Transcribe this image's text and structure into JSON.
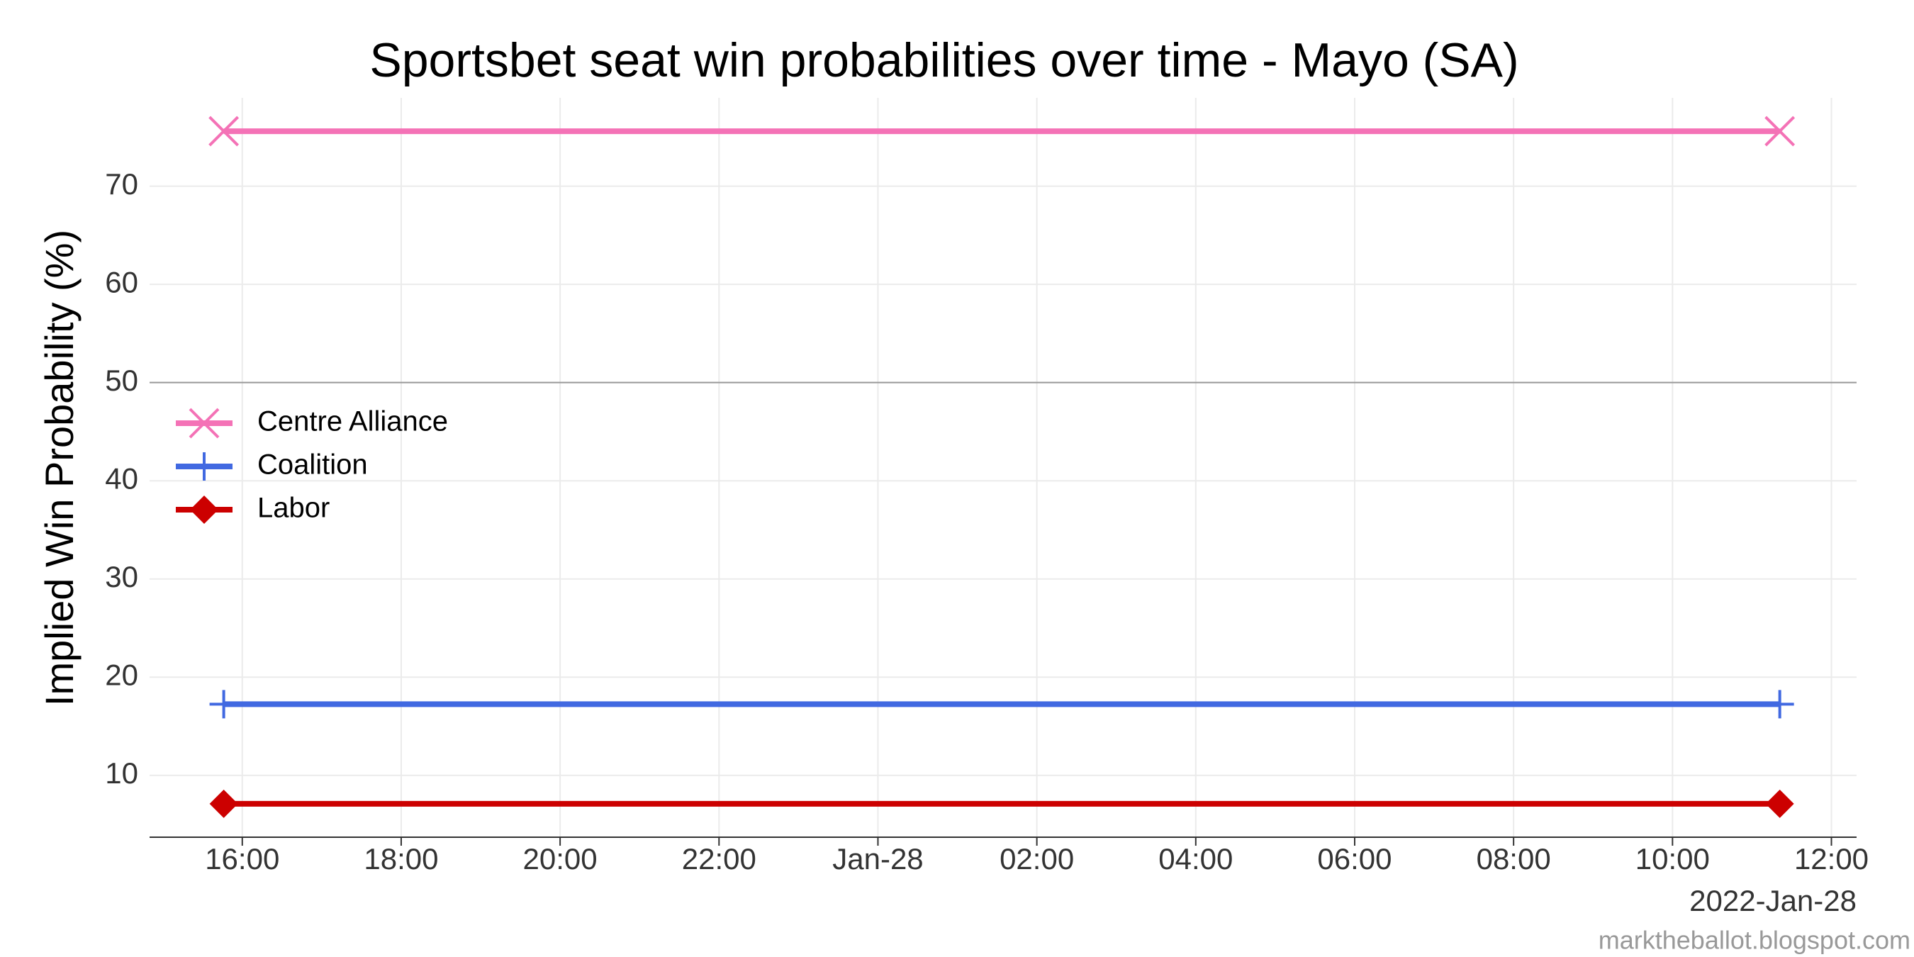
{
  "chart_data": {
    "type": "line",
    "title": "Sportsbet seat win probabilities over time - Mayo (SA)",
    "y_label": "Implied Win Probability (%)",
    "x_label": "2022-Jan-28",
    "caption": "marktheballot.blogspot.com",
    "x": [
      "2022-01-27T15:46",
      "2022-01-28T11:21"
    ],
    "series": [
      {
        "name": "Centre Alliance",
        "color": "#f472b6",
        "marker": "x",
        "values": [
          75.6,
          75.6
        ]
      },
      {
        "name": "Coalition",
        "color": "#4169e1",
        "marker": "plus",
        "values": [
          17.25,
          17.25
        ]
      },
      {
        "name": "Labor",
        "color": "#cc0000",
        "marker": "diamond",
        "values": [
          7.1,
          7.1
        ]
      }
    ],
    "xlim": [
      "2022-01-27T14:50",
      "2022-01-28T12:19"
    ],
    "xticks": [
      {
        "value": "2022-01-27T16:00",
        "label": "16:00"
      },
      {
        "value": "2022-01-27T18:00",
        "label": "18:00"
      },
      {
        "value": "2022-01-27T20:00",
        "label": "20:00"
      },
      {
        "value": "2022-01-27T22:00",
        "label": "22:00"
      },
      {
        "value": "2022-01-28T00:00",
        "label": "Jan-28"
      },
      {
        "value": "2022-01-28T02:00",
        "label": "02:00"
      },
      {
        "value": "2022-01-28T04:00",
        "label": "04:00"
      },
      {
        "value": "2022-01-28T06:00",
        "label": "06:00"
      },
      {
        "value": "2022-01-28T08:00",
        "label": "08:00"
      },
      {
        "value": "2022-01-28T10:00",
        "label": "10:00"
      },
      {
        "value": "2022-01-28T12:00",
        "label": "12:00"
      }
    ],
    "ylim": [
      3.7,
      79
    ],
    "yticks": [
      10,
      20,
      30,
      40,
      50,
      60,
      70
    ],
    "hline": 50,
    "grid": true,
    "legend": "left"
  }
}
